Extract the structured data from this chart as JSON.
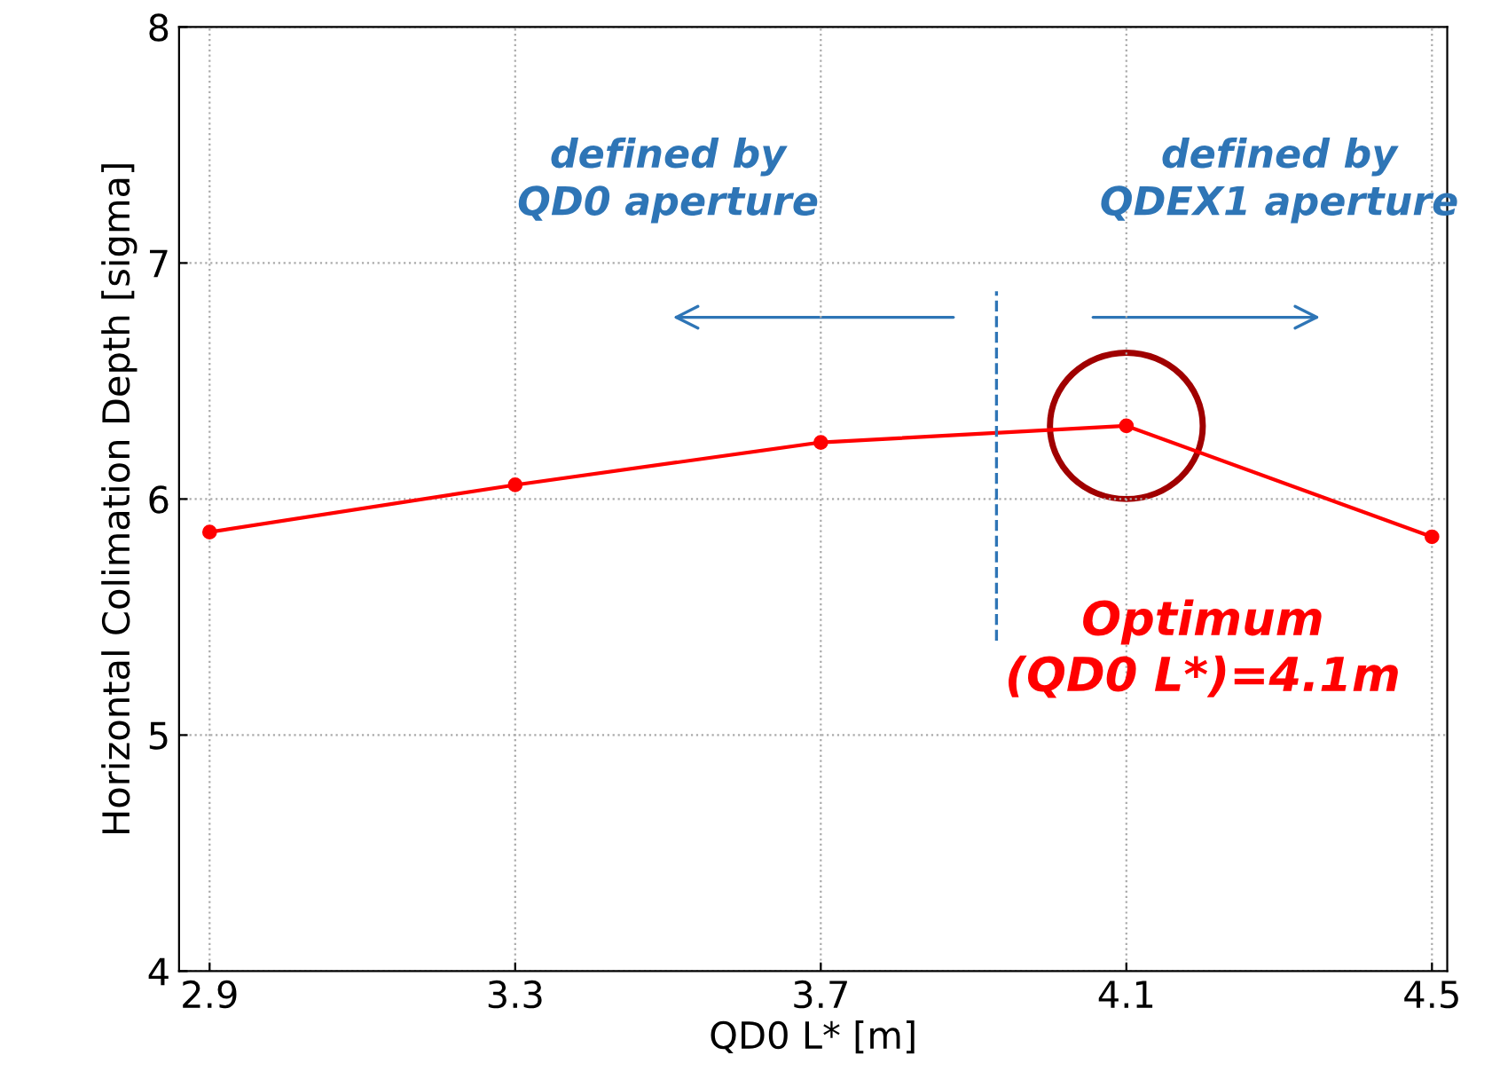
{
  "chart_data": {
    "type": "line",
    "xlabel": "QD0 L* [m]",
    "ylabel": "Horizontal Colimation Depth [sigma]",
    "x": [
      2.9,
      3.3,
      3.7,
      4.1,
      4.5
    ],
    "series": [
      {
        "color": "#ff0000",
        "values": [
          5.86,
          6.06,
          6.24,
          6.31,
          5.84
        ]
      }
    ],
    "xlim": [
      2.86,
      4.52
    ],
    "ylim": [
      4,
      8
    ],
    "xticks": [
      2.9,
      3.3,
      3.7,
      4.1,
      4.5
    ],
    "yticks": [
      4,
      5,
      6,
      7,
      8
    ],
    "grid": true,
    "marker": "circle",
    "line_style": "solid",
    "legend": false,
    "ref_lines": [
      {
        "axis": "x",
        "value": 3.93,
        "color": "#2e75b6",
        "line_style": "dashed"
      }
    ],
    "annotations": [
      "defined by\nQD0 aperture",
      "defined by\nQDEX1 aperture",
      "Optimum\n(QD0 L*)=4.1m"
    ]
  }
}
